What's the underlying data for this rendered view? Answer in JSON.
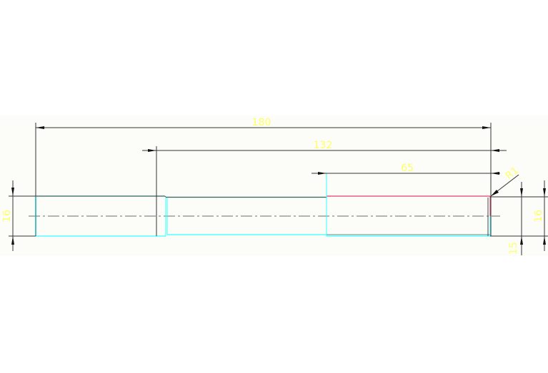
{
  "drawing": {
    "dimensions": {
      "overall_length": "180",
      "length_132": "132",
      "length_65": "65",
      "radius": "R1",
      "left_diameter": "16",
      "right_diameter": "16",
      "right_offset": "15"
    },
    "colors": {
      "background": "#fcfdf9",
      "outline_cyan": "#33ffff",
      "outline_dark": "#2f5f5f",
      "highlight_red": "#e0406a",
      "dimension_text": "#ffff66",
      "dimension_line": "#333333",
      "centerline": "#888888"
    }
  }
}
